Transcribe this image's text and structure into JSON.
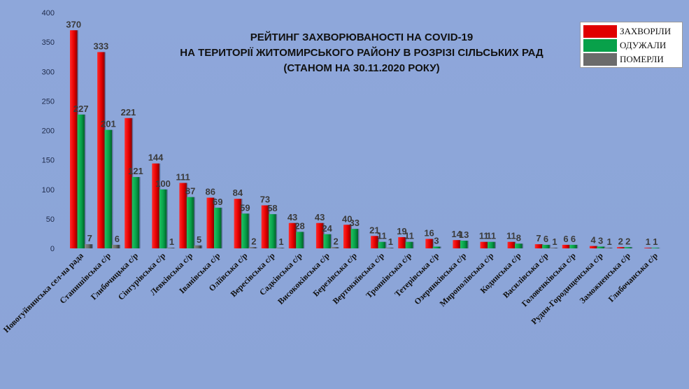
{
  "chart_data": {
    "type": "bar",
    "title_lines": [
      "РЕЙТИНГ ЗАХВОРЮВАНОСТІ НА COVID-19",
      "НА ТЕРИТОРІЇ ЖИТОМИРСЬКОГО РАЙОНУ В РОЗРІЗІ СІЛЬСЬКИХ РАД",
      "(СТАНОМ НА 30.11.2020 РОКУ)"
    ],
    "xlabel": "",
    "ylabel": "",
    "ylim": [
      0,
      400
    ],
    "yticks": [
      0,
      50,
      100,
      150,
      200,
      250,
      300,
      350,
      400
    ],
    "grid": false,
    "legend_position": "top-right",
    "categories": [
      "Новогуйвинська сел-на рада",
      "Станишівська с/р",
      "Глибочицька с/р",
      "Сінгурівська с/р",
      "Левківська с/р",
      "Іванівська с/р",
      "Оліївська с/р",
      "Вересівська с/р",
      "Садківська с/р",
      "Висококівська с/р",
      "Березівська с/р",
      "Вертокиївська с/р",
      "Троянівська с/р",
      "Тетерівська с/р",
      "Озерянківська с/р",
      "Мирополівська с/р",
      "Кодинська с/р",
      "Василівська с/р",
      "Головенківська с/р",
      "Рудня-Городищенська с/р",
      "Заможненська с/р",
      "Глибочанська с/р"
    ],
    "series": [
      {
        "name": "ЗАХВОРІЛИ",
        "color": "#e00000",
        "values": [
          370,
          333,
          221,
          144,
          111,
          86,
          84,
          73,
          43,
          43,
          40,
          21,
          19,
          16,
          14,
          11,
          11,
          7,
          6,
          4,
          2,
          1
        ],
        "labels": [
          "370",
          "333",
          "221",
          "144",
          "111",
          "86",
          "84",
          "73",
          "43",
          "43",
          "40",
          "21",
          "19",
          "16",
          "14",
          "11",
          "11",
          "7",
          "6",
          "4",
          "2",
          "1"
        ]
      },
      {
        "name": "ОДУЖАЛИ",
        "color": "#08a14a",
        "values": [
          227,
          201,
          121,
          100,
          87,
          69,
          59,
          58,
          28,
          24,
          33,
          11,
          11,
          3,
          13,
          11,
          8,
          6,
          6,
          3,
          2,
          1
        ],
        "labels": [
          "227",
          "201",
          "121",
          "100",
          "87",
          "69",
          "59",
          "58",
          "28",
          "24",
          "33",
          "11",
          "11",
          "3",
          "13",
          "11",
          "8",
          "6",
          "6",
          "3",
          "2",
          "1"
        ]
      },
      {
        "name": "ПОМЕРЛИ",
        "color": "#6b6b6b",
        "values": [
          7,
          6,
          0,
          1,
          5,
          0,
          2,
          1,
          0,
          2,
          0,
          1,
          0,
          0,
          0,
          0,
          0,
          1,
          0,
          1,
          0,
          0
        ],
        "labels": [
          "7",
          "6",
          "",
          "1",
          "5",
          "",
          "2",
          "1",
          "",
          "2",
          "",
          "1",
          "",
          "",
          "",
          "",
          "",
          "1",
          "",
          "1",
          "",
          ""
        ]
      }
    ]
  },
  "legend": {
    "items": [
      "ЗАХВОРІЛИ",
      "ОДУЖАЛИ",
      "ПОМЕРЛИ"
    ],
    "colors": [
      "#e00000",
      "#08a14a",
      "#6b6b6b"
    ]
  }
}
